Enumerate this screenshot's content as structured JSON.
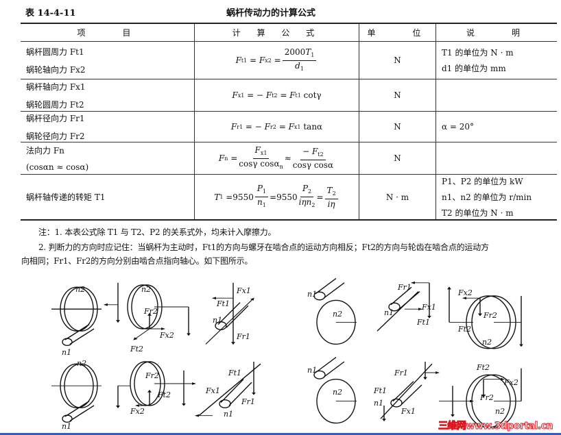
{
  "header": {
    "table_no": "表 14-4-11",
    "title": "蜗杆传动力的计算公式"
  },
  "columns": [
    "项　　目",
    "计 算 公 式",
    "单　　位",
    "说　　明"
  ],
  "rows": [
    {
      "item": [
        "蜗杆圆周力 Ft1",
        "蜗轮轴向力 Fx2"
      ],
      "formula": "Ft1 = Fx2 = 2000T1 / d1",
      "unit": "N",
      "notes": [
        "T1 的单位为 N · m",
        "d1 的单位为 mm"
      ]
    },
    {
      "item": [
        "蜗杆轴向力 Fx1",
        "蜗轮圆周力 Ft2"
      ],
      "formula": "Fx1 = − Ft2 = Ft1 cotγ",
      "unit": "N",
      "notes": []
    },
    {
      "item": [
        "蜗杆径向力 Fr1",
        "蜗轮径向力 Fr2"
      ],
      "formula": "Fr1 = − Fr2 = Fx1 tanα",
      "unit": "N",
      "notes": [
        "α = 20°"
      ]
    },
    {
      "item": [
        "法向力 Fn",
        "(cosαn ≈ cosα)"
      ],
      "formula": "Fn = Fx1/(cosγ cosαn) ≈ −Ft2/(cosγ cosα)",
      "unit": "N",
      "notes": []
    },
    {
      "item": [
        "蜗杆轴传递的转矩 T1"
      ],
      "formula": "T1 = 9550 P1/n1 = 9550 P2/(iηn2) = T2/(iη)",
      "unit": "N · m",
      "notes": [
        "P1、P2 的单位为 kW",
        "n1、n2 的单位为 r/min",
        "T2 的单位为 N · m"
      ]
    }
  ],
  "notes": {
    "n1": "注：1. 本表公式除 T1 与 T2、P2 的关系式外，均未计入摩擦力。",
    "n2a": "2. 判断力的方向时应记住：当蜗杆为主动时，Ft1的方向与螺牙在啮合点的运动方向相反；Ft2的方向与轮齿在啮合点的运动方",
    "n2b": "向相同；Fr1、Fr2的方向分别由啮合点指向轴心。如下图所示。"
  },
  "figure_labels": {
    "n1": "n1",
    "n2": "n2",
    "Ft1": "Ft1",
    "Ft2": "Ft2",
    "Fx1": "Fx1",
    "Fx2": "Fx2",
    "Fr1": "Fr1",
    "Fr2": "Fr2"
  },
  "watermark": "三维网www.3dportal.cn"
}
